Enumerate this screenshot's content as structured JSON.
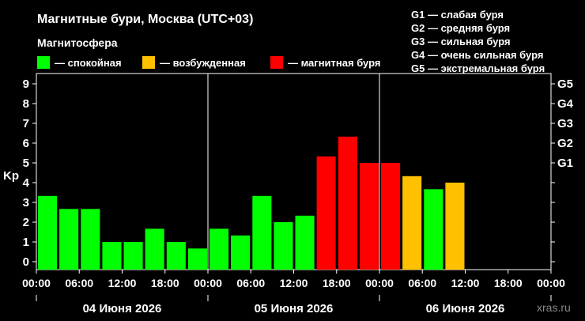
{
  "chart_data": {
    "type": "bar",
    "title": "Магнитные бури, Москва (UTC+03)",
    "subtitle": "Магнитосфера",
    "ylabel": "Kp",
    "ylim": [
      -0.3,
      9.5
    ],
    "y_ticks": [
      "0",
      "1",
      "2",
      "3",
      "4",
      "5",
      "6",
      "7",
      "8",
      "9"
    ],
    "g_ticks": [
      {
        "label": "G1",
        "kp": 5
      },
      {
        "label": "G2",
        "kp": 6
      },
      {
        "label": "G3",
        "kp": 7
      },
      {
        "label": "G4",
        "kp": 8
      },
      {
        "label": "G5",
        "kp": 9
      }
    ],
    "legend": [
      {
        "label": "— спокойная",
        "color": "#00ff00"
      },
      {
        "label": "— возбужденная",
        "color": "#ffc000"
      },
      {
        "label": "— магнитная буря",
        "color": "#ff0000"
      }
    ],
    "g_levels": [
      "G1 — слабая буря",
      "G2 — средняя буря",
      "G3 — сильная буря",
      "G4 — очень сильная буря",
      "G5 — экстремальная буря"
    ],
    "x_ticks": [
      "00:00",
      "06:00",
      "12:00",
      "18:00",
      "00:00",
      "06:00",
      "12:00",
      "18:00",
      "00:00",
      "06:00",
      "12:00",
      "18:00",
      "00:00"
    ],
    "days": [
      "04 Июня 2026",
      "05 Июня 2026",
      "06 Июня 2026"
    ],
    "values": [
      3.33,
      2.67,
      2.67,
      1.0,
      1.0,
      1.67,
      1.0,
      0.67,
      1.67,
      1.33,
      3.33,
      2.0,
      2.33,
      5.33,
      6.33,
      5.0,
      5.0,
      4.33,
      3.67,
      4.0
    ],
    "colors": [
      "#00ff00",
      "#00ff00",
      "#00ff00",
      "#00ff00",
      "#00ff00",
      "#00ff00",
      "#00ff00",
      "#00ff00",
      "#00ff00",
      "#00ff00",
      "#00ff00",
      "#00ff00",
      "#00ff00",
      "#ff0000",
      "#ff0000",
      "#ff0000",
      "#ff0000",
      "#ffc000",
      "#00ff00",
      "#ffc000"
    ],
    "grid": false
  },
  "watermark": "xras.ru"
}
